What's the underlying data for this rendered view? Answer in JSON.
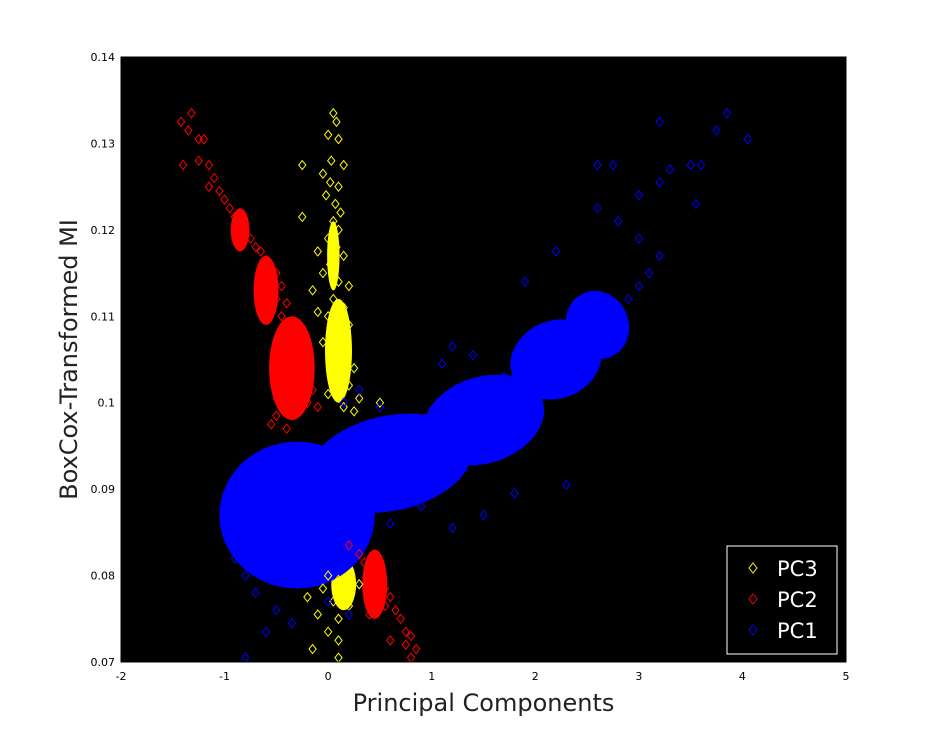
{
  "chart_data": {
    "type": "scatter",
    "title": "",
    "xlabel": "Principal Components",
    "ylabel": "BoxCox-Transformed MI",
    "xlim": [
      -2,
      5
    ],
    "ylim": [
      0.07,
      0.14
    ],
    "xticks": [
      "-2",
      "-1",
      "0",
      "1",
      "2",
      "3",
      "4",
      "5"
    ],
    "yticks": [
      "0.07",
      "0.08",
      "0.09",
      "0.1",
      "0.11",
      "0.12",
      "0.13",
      "0.14"
    ],
    "background_color": "#000000",
    "marker": "diamond",
    "grid": false,
    "legend_position": "bottom-right",
    "series": [
      {
        "name": "PC3",
        "color": "#ffff00",
        "points": [
          [
            0.05,
            0.1335
          ],
          [
            0.08,
            0.1325
          ],
          [
            0.0,
            0.131
          ],
          [
            0.1,
            0.1305
          ],
          [
            0.03,
            0.128
          ],
          [
            0.15,
            0.1275
          ],
          [
            -0.25,
            0.1275
          ],
          [
            -0.05,
            0.1265
          ],
          [
            0.02,
            0.1255
          ],
          [
            0.1,
            0.125
          ],
          [
            -0.02,
            0.124
          ],
          [
            0.07,
            0.123
          ],
          [
            0.12,
            0.122
          ],
          [
            -0.25,
            0.1215
          ],
          [
            0.05,
            0.121
          ],
          [
            0.1,
            0.12
          ],
          [
            0.0,
            0.119
          ],
          [
            0.08,
            0.118
          ],
          [
            -0.1,
            0.1175
          ],
          [
            0.15,
            0.117
          ],
          [
            0.02,
            0.116
          ],
          [
            -0.05,
            0.115
          ],
          [
            0.1,
            0.114
          ],
          [
            0.2,
            0.1135
          ],
          [
            -0.15,
            0.113
          ],
          [
            0.05,
            0.112
          ],
          [
            0.15,
            0.111
          ],
          [
            -0.1,
            0.1105
          ],
          [
            0.0,
            0.11
          ],
          [
            0.2,
            0.109
          ],
          [
            0.1,
            0.108
          ],
          [
            -0.05,
            0.107
          ],
          [
            0.15,
            0.106
          ],
          [
            0.05,
            0.105
          ],
          [
            0.25,
            0.104
          ],
          [
            0.1,
            0.103
          ],
          [
            0.2,
            0.102
          ],
          [
            0.0,
            0.101
          ],
          [
            0.3,
            0.1005
          ],
          [
            0.15,
            0.0995
          ],
          [
            0.25,
            0.099
          ],
          [
            0.5,
            0.1
          ],
          [
            0.0,
            0.08
          ],
          [
            0.1,
            0.0795
          ],
          [
            -0.05,
            0.0785
          ],
          [
            0.15,
            0.078
          ],
          [
            0.05,
            0.077
          ],
          [
            0.2,
            0.0765
          ],
          [
            -0.1,
            0.0755
          ],
          [
            0.1,
            0.075
          ],
          [
            0.0,
            0.0735
          ],
          [
            0.1,
            0.0725
          ],
          [
            -0.15,
            0.0715
          ],
          [
            0.1,
            0.0705
          ],
          [
            0.3,
            0.079
          ],
          [
            -0.2,
            0.0775
          ]
        ]
      },
      {
        "name": "PC2",
        "color": "#ff0000",
        "points": [
          [
            -1.42,
            0.1325
          ],
          [
            -1.32,
            0.1335
          ],
          [
            -1.35,
            0.1315
          ],
          [
            -1.25,
            0.1305
          ],
          [
            -1.2,
            0.1305
          ],
          [
            -1.4,
            0.1275
          ],
          [
            -1.15,
            0.1275
          ],
          [
            -1.25,
            0.128
          ],
          [
            -1.1,
            0.126
          ],
          [
            -1.15,
            0.125
          ],
          [
            -1.05,
            0.1245
          ],
          [
            -1.0,
            0.1235
          ],
          [
            -0.95,
            0.1225
          ],
          [
            -0.9,
            0.1215
          ],
          [
            -0.85,
            0.1205
          ],
          [
            -0.8,
            0.12
          ],
          [
            -0.75,
            0.119
          ],
          [
            -0.7,
            0.118
          ],
          [
            -0.65,
            0.1175
          ],
          [
            -0.6,
            0.1165
          ],
          [
            -0.55,
            0.1155
          ],
          [
            -0.5,
            0.115
          ],
          [
            -0.55,
            0.114
          ],
          [
            -0.45,
            0.1135
          ],
          [
            -0.5,
            0.112
          ],
          [
            -0.4,
            0.1115
          ],
          [
            -0.45,
            0.11
          ],
          [
            -0.35,
            0.109
          ],
          [
            -0.4,
            0.1075
          ],
          [
            -0.3,
            0.107
          ],
          [
            -0.35,
            0.1055
          ],
          [
            -0.25,
            0.105
          ],
          [
            -0.3,
            0.104
          ],
          [
            -0.2,
            0.1035
          ],
          [
            -0.25,
            0.102
          ],
          [
            -0.15,
            0.1015
          ],
          [
            -0.2,
            0.1
          ],
          [
            -0.1,
            0.0995
          ],
          [
            -0.3,
            0.099
          ],
          [
            -0.5,
            0.0985
          ],
          [
            -0.55,
            0.0975
          ],
          [
            -0.4,
            0.097
          ],
          [
            0.2,
            0.0835
          ],
          [
            0.3,
            0.0825
          ],
          [
            0.35,
            0.0815
          ],
          [
            0.4,
            0.081
          ],
          [
            0.45,
            0.08
          ],
          [
            0.5,
            0.079
          ],
          [
            0.55,
            0.0785
          ],
          [
            0.6,
            0.0775
          ],
          [
            0.55,
            0.0765
          ],
          [
            0.65,
            0.076
          ],
          [
            0.7,
            0.075
          ],
          [
            0.75,
            0.0735
          ],
          [
            0.8,
            0.073
          ],
          [
            0.75,
            0.072
          ],
          [
            0.85,
            0.0715
          ],
          [
            0.8,
            0.0705
          ],
          [
            0.4,
            0.0755
          ],
          [
            0.6,
            0.0725
          ]
        ]
      },
      {
        "name": "PC1",
        "color": "#0000ff",
        "points": [
          [
            -0.5,
            0.085
          ],
          [
            -0.4,
            0.0875
          ],
          [
            -0.3,
            0.084
          ],
          [
            -0.6,
            0.0865
          ],
          [
            -0.2,
            0.0895
          ],
          [
            -0.1,
            0.086
          ],
          [
            0.0,
            0.0905
          ],
          [
            0.1,
            0.088
          ],
          [
            0.2,
            0.0915
          ],
          [
            0.3,
            0.093
          ],
          [
            0.4,
            0.09
          ],
          [
            0.5,
            0.0945
          ],
          [
            0.6,
            0.0925
          ],
          [
            0.7,
            0.0955
          ],
          [
            0.8,
            0.094
          ],
          [
            0.9,
            0.097
          ],
          [
            1.0,
            0.0955
          ],
          [
            1.1,
            0.0985
          ],
          [
            1.2,
            0.097
          ],
          [
            1.3,
            0.0995
          ],
          [
            1.4,
            0.0985
          ],
          [
            1.5,
            0.1015
          ],
          [
            1.6,
            0.1
          ],
          [
            1.7,
            0.103
          ],
          [
            1.8,
            0.1015
          ],
          [
            1.9,
            0.104
          ],
          [
            2.0,
            0.103
          ],
          [
            2.1,
            0.1055
          ],
          [
            2.2,
            0.1045
          ],
          [
            2.3,
            0.107
          ],
          [
            2.4,
            0.1055
          ],
          [
            2.5,
            0.1075
          ],
          [
            2.6,
            0.1065
          ],
          [
            2.7,
            0.109
          ],
          [
            2.8,
            0.111
          ],
          [
            2.9,
            0.112
          ],
          [
            3.0,
            0.1135
          ],
          [
            3.1,
            0.115
          ],
          [
            3.2,
            0.117
          ],
          [
            3.0,
            0.119
          ],
          [
            2.8,
            0.121
          ],
          [
            2.6,
            0.1225
          ],
          [
            3.0,
            0.124
          ],
          [
            2.6,
            0.1275
          ],
          [
            2.75,
            0.1275
          ],
          [
            3.2,
            0.1255
          ],
          [
            3.3,
            0.127
          ],
          [
            3.5,
            0.1275
          ],
          [
            3.6,
            0.1275
          ],
          [
            3.2,
            0.1325
          ],
          [
            3.75,
            0.1315
          ],
          [
            3.85,
            0.1335
          ],
          [
            4.05,
            0.1305
          ],
          [
            3.55,
            0.123
          ],
          [
            -0.8,
            0.08
          ],
          [
            -0.7,
            0.078
          ],
          [
            -0.5,
            0.076
          ],
          [
            -0.6,
            0.0735
          ],
          [
            -0.35,
            0.0745
          ],
          [
            -0.8,
            0.0705
          ],
          [
            -1.0,
            0.087
          ],
          [
            -0.9,
            0.082
          ],
          [
            0.15,
            0.1
          ],
          [
            0.3,
            0.1015
          ],
          [
            0.5,
            0.0995
          ],
          [
            1.1,
            0.1045
          ],
          [
            1.2,
            0.0855
          ],
          [
            1.5,
            0.087
          ],
          [
            1.8,
            0.0895
          ],
          [
            0.6,
            0.086
          ],
          [
            0.9,
            0.088
          ],
          [
            2.3,
            0.0905
          ],
          [
            1.9,
            0.114
          ],
          [
            2.2,
            0.1175
          ],
          [
            1.2,
            0.1065
          ],
          [
            1.4,
            0.1055
          ],
          [
            0.0,
            0.077
          ],
          [
            0.2,
            0.0755
          ],
          [
            -0.3,
            0.079
          ],
          [
            -0.15,
            0.081
          ]
        ]
      }
    ]
  }
}
